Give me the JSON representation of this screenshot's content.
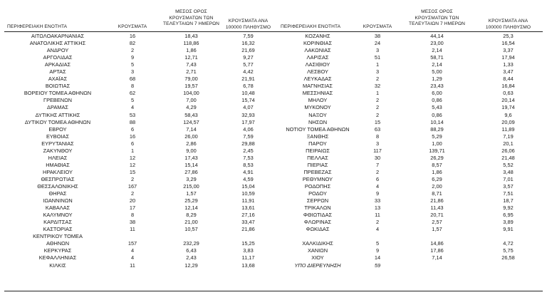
{
  "header": {
    "left": {
      "region": "ΠΕΡΙΦΕΡΕΙΑΚΗ ΕΝΟΤΗΤΑ",
      "cases": "ΚΡΟΥΣΜΑΤΑ",
      "avg": [
        "ΜΕΣΟΣ ΟΡΟΣ",
        "ΚΡΟΥΣΜΑΤΩΝ ΤΩΝ",
        "ΤΕΛΕΥΤΑΙΩΝ 7 ΗΜΕΡΩΝ"
      ],
      "per100k": [
        "ΚΡΟΥΣΜΑΤΑ ΑΝΑ",
        "100000 ΠΛΗΘΥΣΜΟ"
      ]
    },
    "right": {
      "region": "ΠΕΡΙΦΕΡΕΙΑΚΗ ΕΝΟΤΗΤΑ",
      "cases": "ΚΡΟΥΣΜΑΤΑ",
      "avg": [
        "ΜΕΣΟΣ ΟΡΟΣ",
        "ΚΡΟΥΣΜΑΤΩΝ ΤΩΝ",
        "ΤΕΛΕΥΤΑΙΩΝ 7 ΗΜΕΡΩΝ"
      ],
      "per100k": [
        "ΚΡΟΥΣΜΑΤΑ ΑΝΑ",
        "100000 ΠΛΗΘΥΣΜΟ"
      ]
    }
  },
  "left_rows": [
    [
      "ΑΙΤΩΛΟΑΚΑΡΝΑΝΙΑΣ",
      "16",
      "18,43",
      "7,59"
    ],
    [
      "ΑΝΑΤΟΛΙΚΗΣ ΑΤΤΙΚΗΣ",
      "82",
      "118,86",
      "16,32"
    ],
    [
      "ΑΝΔΡΟΥ",
      "2",
      "1,86",
      "21,69"
    ],
    [
      "ΑΡΓΟΛΙΔΑΣ",
      "9",
      "12,71",
      "9,27"
    ],
    [
      "ΑΡΚΑΔΙΑΣ",
      "5",
      "7,43",
      "5,77"
    ],
    [
      "ΑΡΤΑΣ",
      "3",
      "2,71",
      "4,42"
    ],
    [
      "ΑΧΑΪΑΣ",
      "68",
      "79,00",
      "21,91"
    ],
    [
      "ΒΟΙΩΤΙΑΣ",
      "8",
      "19,57",
      "6,78"
    ],
    [
      "ΒΟΡΕΙΟΥ ΤΟΜΕΑ ΑΘΗΝΩΝ",
      "62",
      "104,00",
      "10,48"
    ],
    [
      "ΓΡΕΒΕΝΩΝ",
      "5",
      "7,00",
      "15,74"
    ],
    [
      "ΔΡΑΜΑΣ",
      "4",
      "4,29",
      "4,07"
    ],
    [
      "ΔΥΤΙΚΗΣ ΑΤΤΙΚΗΣ",
      "53",
      "58,43",
      "32,93"
    ],
    [
      "ΔΥΤΙΚΟΥ ΤΟΜΕΑ ΑΘΗΝΩΝ",
      "88",
      "124,57",
      "17,97"
    ],
    [
      "ΕΒΡΟΥ",
      "6",
      "7,14",
      "4,06"
    ],
    [
      "ΕΥΒΟΙΑΣ",
      "16",
      "26,00",
      "7,59"
    ],
    [
      "ΕΥΡΥΤΑΝΙΑΣ",
      "6",
      "2,86",
      "29,88"
    ],
    [
      "ΖΑΚΥΝΘΟΥ",
      "1",
      "9,00",
      "2,45"
    ],
    [
      "ΗΛΕΙΑΣ",
      "12",
      "17,43",
      "7,53"
    ],
    [
      "ΗΜΑΘΙΑΣ",
      "12",
      "15,14",
      "8,53"
    ],
    [
      "ΗΡΑΚΛΕΙΟΥ",
      "15",
      "27,86",
      "4,91"
    ],
    [
      "ΘΕΣΠΡΩΤΙΑΣ",
      "2",
      "3,29",
      "4,59"
    ],
    [
      "ΘΕΣΣΑΛΟΝΙΚΗΣ",
      "167",
      "215,00",
      "15,04"
    ],
    [
      "ΘΗΡΑΣ",
      "2",
      "1,57",
      "10,59"
    ],
    [
      "ΙΩΑΝΝΙΝΩΝ",
      "20",
      "25,29",
      "11,91"
    ],
    [
      "ΚΑΒΑΛΑΣ",
      "17",
      "12,14",
      "13,61"
    ],
    [
      "ΚΑΛΥΜΝΟΥ",
      "8",
      "8,29",
      "27,16"
    ],
    [
      "ΚΑΡΔΙΤΣΑΣ",
      "38",
      "21,00",
      "33,47"
    ],
    [
      "ΚΑΣΤΟΡΙΑΣ",
      "11",
      "10,57",
      "21,86"
    ],
    [
      "ΚΕΝΤΡΙΚΟΥ ΤΟΜΕΑ",
      "",
      "",
      ""
    ],
    [
      "ΑΘΗΝΩΝ",
      "157",
      "232,29",
      "15,25"
    ],
    [
      "ΚΕΡΚΥΡΑΣ",
      "4",
      "6,43",
      "3,83"
    ],
    [
      "ΚΕΦΑΛΛΗΝΙΑΣ",
      "4",
      "2,43",
      "11,17"
    ],
    [
      "ΚΙΛΚΙΣ",
      "11",
      "12,29",
      "13,68"
    ]
  ],
  "right_rows": [
    [
      "ΚΟΖΑΝΗΣ",
      "38",
      "44,14",
      "25,3"
    ],
    [
      "ΚΟΡΙΝΘΙΑΣ",
      "24",
      "23,00",
      "16,54"
    ],
    [
      "ΛΑΚΩΝΙΑΣ",
      "3",
      "2,14",
      "3,37"
    ],
    [
      "ΛΑΡΙΣΑΣ",
      "51",
      "58,71",
      "17,94"
    ],
    [
      "ΛΑΣΙΘΙΟΥ",
      "1",
      "2,14",
      "1,33"
    ],
    [
      "ΛΕΣΒΟΥ",
      "3",
      "5,00",
      "3,47"
    ],
    [
      "ΛΕΥΚΑΔΑΣ",
      "2",
      "1,29",
      "8,44"
    ],
    [
      "ΜΑΓΝΗΣΙΑΣ",
      "32",
      "23,43",
      "16,84"
    ],
    [
      "ΜΕΣΣΗΝΙΑΣ",
      "1",
      "6,00",
      "0,63"
    ],
    [
      "ΜΗΛΟΥ",
      "2",
      "0,86",
      "20,14"
    ],
    [
      "ΜΥΚΟΝΟΥ",
      "2",
      "5,43",
      "19,74"
    ],
    [
      "ΝΑΞΟΥ",
      "2",
      "0,86",
      "9,6"
    ],
    [
      "ΝΗΣΩΝ",
      "15",
      "10,14",
      "20,09"
    ],
    [
      "ΝΟΤΙΟΥ ΤΟΜΕΑ ΑΘΗΝΩΝ",
      "63",
      "88,29",
      "11,89"
    ],
    [
      "ΞΑΝΘΗΣ",
      "8",
      "5,29",
      "7,19"
    ],
    [
      "ΠΑΡΟΥ",
      "3",
      "1,00",
      "20,1"
    ],
    [
      "ΠΕΙΡΑΙΩΣ",
      "117",
      "139,71",
      "26,06"
    ],
    [
      "ΠΕΛΛΑΣ",
      "30",
      "26,29",
      "21,48"
    ],
    [
      "ΠΙΕΡΙΑΣ",
      "7",
      "8,57",
      "5,52"
    ],
    [
      "ΠΡΕΒΕΖΑΣ",
      "2",
      "1,86",
      "3,48"
    ],
    [
      "ΡΕΘΥΜΝΟΥ",
      "6",
      "6,29",
      "7,01"
    ],
    [
      "ΡΟΔΟΠΗΣ",
      "4",
      "2,00",
      "3,57"
    ],
    [
      "ΡΟΔΟΥ",
      "9",
      "8,71",
      "7,51"
    ],
    [
      "ΣΕΡΡΩΝ",
      "33",
      "21,86",
      "18,7"
    ],
    [
      "ΤΡΙΚΑΛΩΝ",
      "13",
      "11,43",
      "9,92"
    ],
    [
      "ΦΘΙΩΤΙΔΑΣ",
      "11",
      "20,71",
      "6,95"
    ],
    [
      "ΦΛΩΡΙΝΑΣ",
      "2",
      "2,57",
      "3,89"
    ],
    [
      "ΦΩΚΙΔΑΣ",
      "4",
      "1,57",
      "9,91"
    ],
    [
      "",
      "",
      "",
      ""
    ],
    [
      "ΧΑΛΚΙΔΙΚΗΣ",
      "5",
      "14,86",
      "4,72"
    ],
    [
      "ΧΑΝΙΩΝ",
      "9",
      "17,86",
      "5,75"
    ],
    [
      "ΧΙΟΥ",
      "14",
      "7,14",
      "26,58"
    ],
    [
      "ΥΠΟ ΔΙΕΡΕΥΝΗΣΗ",
      "59",
      "",
      ""
    ]
  ]
}
